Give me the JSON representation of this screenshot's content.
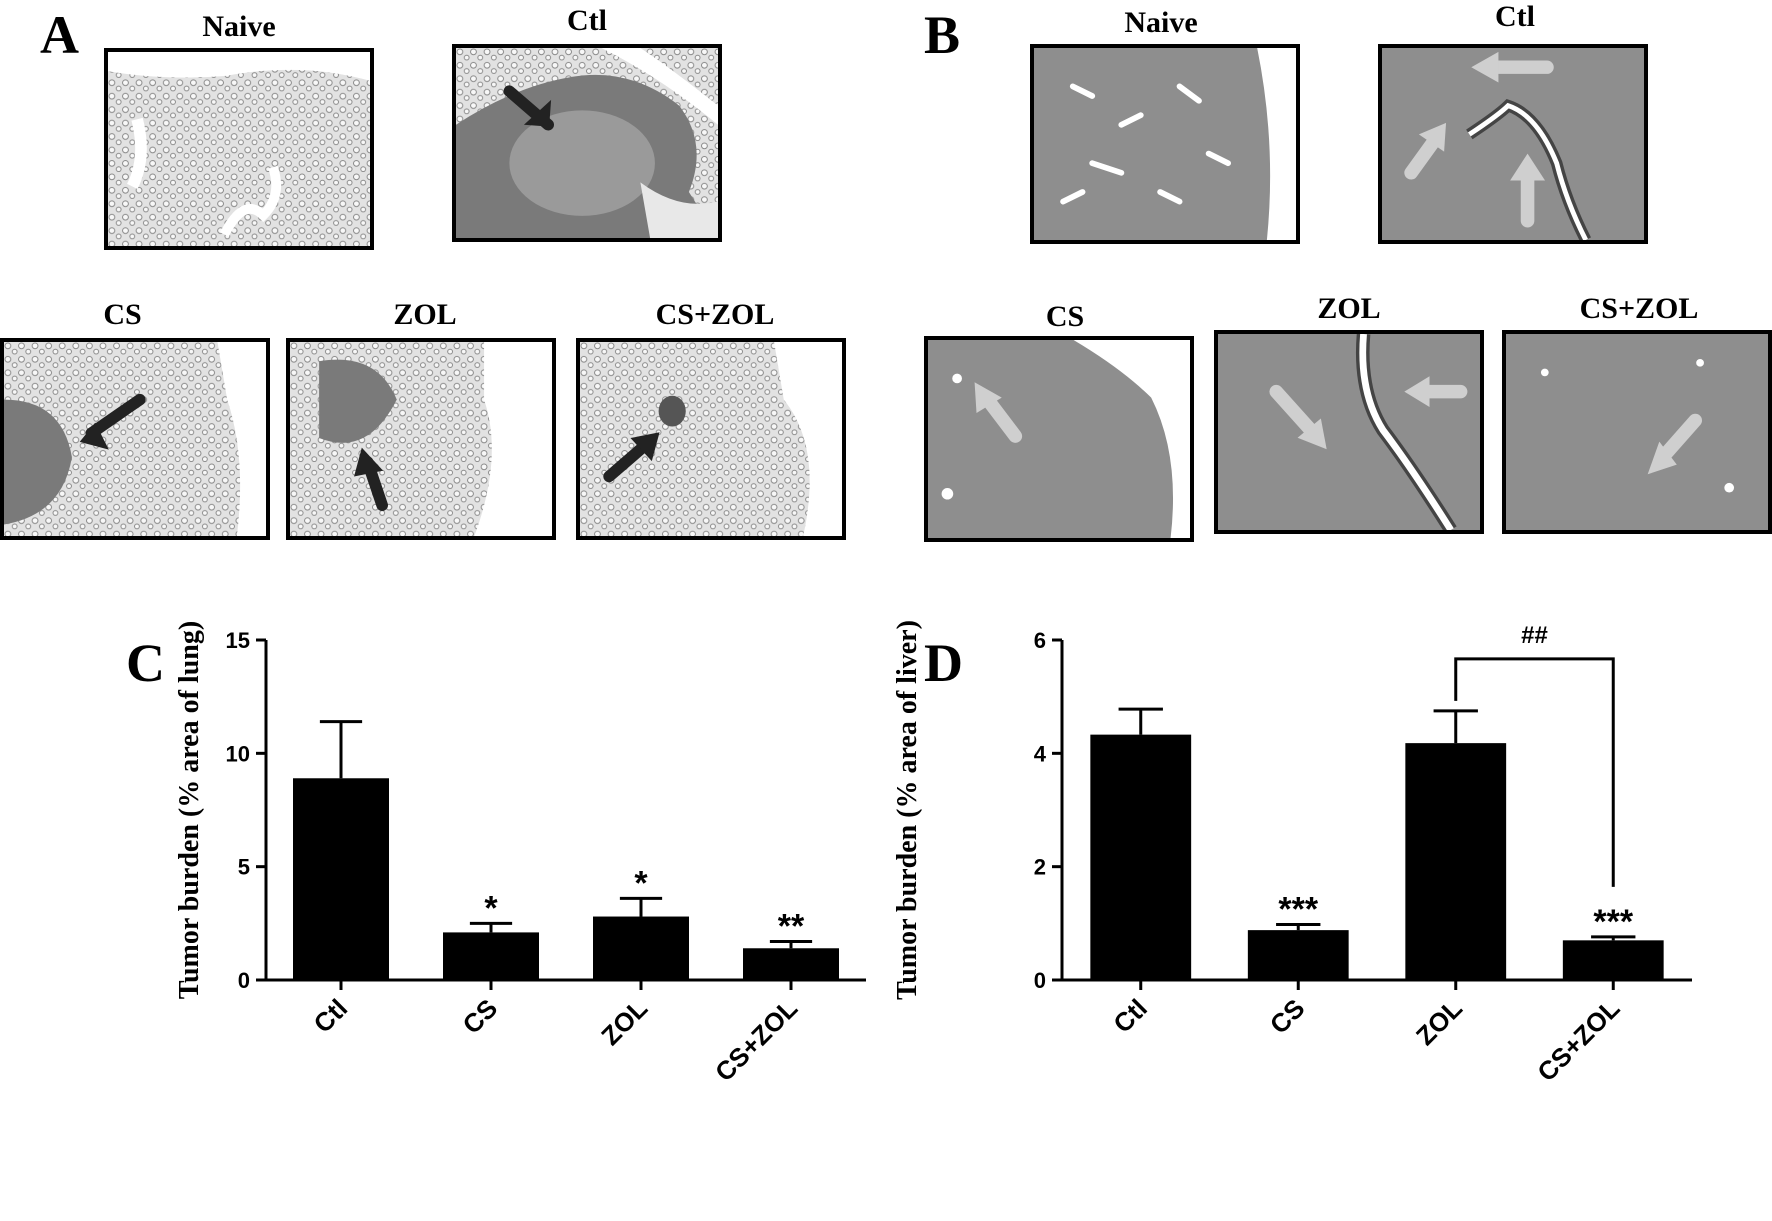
{
  "panels": {
    "A": {
      "letter": "A",
      "images": [
        {
          "label": "Naive"
        },
        {
          "label": "Ctl"
        },
        {
          "label": "CS"
        },
        {
          "label": "ZOL"
        },
        {
          "label": "CS+ZOL"
        }
      ]
    },
    "B": {
      "letter": "B",
      "images": [
        {
          "label": "Naive"
        },
        {
          "label": "Ctl"
        },
        {
          "label": "CS"
        },
        {
          "label": "ZOL"
        },
        {
          "label": "CS+ZOL"
        }
      ]
    },
    "C": {
      "letter": "C"
    },
    "D": {
      "letter": "D"
    }
  },
  "colors": {
    "bar": "#000000",
    "lung_tissue": "#d6d6d6",
    "liver_tissue": "#8e8e8e",
    "arrow_dark": "#222222",
    "arrow_light": "#cfcfcf"
  },
  "chart_data": [
    {
      "type": "bar",
      "panel": "C",
      "ylabel": "Tumor burden (% area of lung)",
      "categories": [
        "Ctl",
        "CS",
        "ZOL",
        "CS+ZOL"
      ],
      "values": [
        8.9,
        2.1,
        2.8,
        1.4
      ],
      "errors": [
        2.5,
        0.4,
        0.8,
        0.3
      ],
      "annotations": [
        "",
        "*",
        "*",
        "**"
      ],
      "ylim": [
        0,
        15
      ],
      "yticks": [
        "0",
        "5",
        "10",
        "15"
      ]
    },
    {
      "type": "bar",
      "panel": "D",
      "ylabel": "Tumor burden (% area of liver)",
      "categories": [
        "Ctl",
        "CS",
        "ZOL",
        "CS+ZOL"
      ],
      "values": [
        4.33,
        0.88,
        4.18,
        0.7
      ],
      "errors": [
        0.45,
        0.1,
        0.57,
        0.06
      ],
      "annotations": [
        "",
        "***",
        "",
        "***"
      ],
      "bracket": {
        "from": "ZOL",
        "to": "CS+ZOL",
        "label": "##"
      },
      "ylim": [
        0,
        6
      ],
      "yticks": [
        "0",
        "2",
        "4",
        "6"
      ]
    }
  ]
}
